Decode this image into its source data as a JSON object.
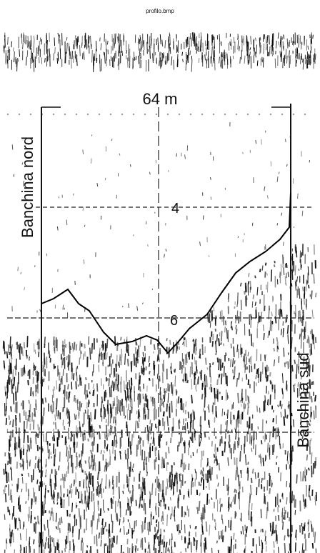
{
  "header": {
    "filename": "profilo.bmp",
    "scale": "64 m"
  },
  "labels": {
    "north": "Banchina nord",
    "south": "Banchina sud"
  },
  "depth_marks": [
    "4",
    "6"
  ]
}
